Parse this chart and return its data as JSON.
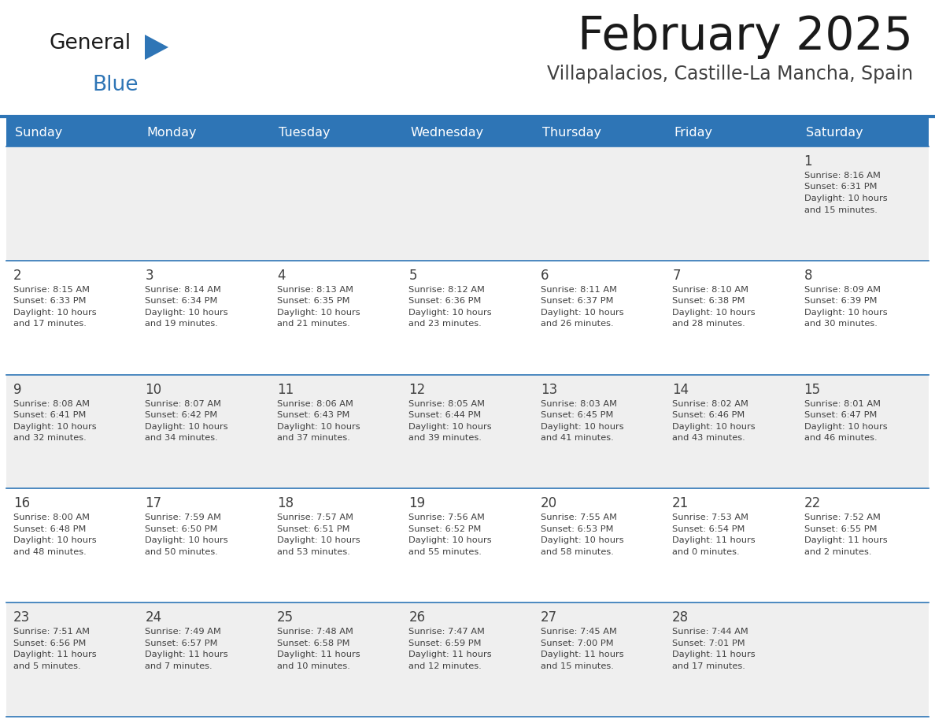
{
  "title": "February 2025",
  "subtitle": "Villapalacios, Castille-La Mancha, Spain",
  "header_bg": "#2E75B6",
  "header_text_color": "#FFFFFF",
  "cell_bg_light": "#EFEFEF",
  "cell_bg_white": "#FFFFFF",
  "day_headers": [
    "Sunday",
    "Monday",
    "Tuesday",
    "Wednesday",
    "Thursday",
    "Friday",
    "Saturday"
  ],
  "calendar_data": [
    [
      null,
      null,
      null,
      null,
      null,
      null,
      {
        "day": 1,
        "sunrise": "8:16 AM",
        "sunset": "6:31 PM",
        "daylight1": "Daylight: 10 hours",
        "daylight2": "and 15 minutes."
      }
    ],
    [
      {
        "day": 2,
        "sunrise": "8:15 AM",
        "sunset": "6:33 PM",
        "daylight1": "Daylight: 10 hours",
        "daylight2": "and 17 minutes."
      },
      {
        "day": 3,
        "sunrise": "8:14 AM",
        "sunset": "6:34 PM",
        "daylight1": "Daylight: 10 hours",
        "daylight2": "and 19 minutes."
      },
      {
        "day": 4,
        "sunrise": "8:13 AM",
        "sunset": "6:35 PM",
        "daylight1": "Daylight: 10 hours",
        "daylight2": "and 21 minutes."
      },
      {
        "day": 5,
        "sunrise": "8:12 AM",
        "sunset": "6:36 PM",
        "daylight1": "Daylight: 10 hours",
        "daylight2": "and 23 minutes."
      },
      {
        "day": 6,
        "sunrise": "8:11 AM",
        "sunset": "6:37 PM",
        "daylight1": "Daylight: 10 hours",
        "daylight2": "and 26 minutes."
      },
      {
        "day": 7,
        "sunrise": "8:10 AM",
        "sunset": "6:38 PM",
        "daylight1": "Daylight: 10 hours",
        "daylight2": "and 28 minutes."
      },
      {
        "day": 8,
        "sunrise": "8:09 AM",
        "sunset": "6:39 PM",
        "daylight1": "Daylight: 10 hours",
        "daylight2": "and 30 minutes."
      }
    ],
    [
      {
        "day": 9,
        "sunrise": "8:08 AM",
        "sunset": "6:41 PM",
        "daylight1": "Daylight: 10 hours",
        "daylight2": "and 32 minutes."
      },
      {
        "day": 10,
        "sunrise": "8:07 AM",
        "sunset": "6:42 PM",
        "daylight1": "Daylight: 10 hours",
        "daylight2": "and 34 minutes."
      },
      {
        "day": 11,
        "sunrise": "8:06 AM",
        "sunset": "6:43 PM",
        "daylight1": "Daylight: 10 hours",
        "daylight2": "and 37 minutes."
      },
      {
        "day": 12,
        "sunrise": "8:05 AM",
        "sunset": "6:44 PM",
        "daylight1": "Daylight: 10 hours",
        "daylight2": "and 39 minutes."
      },
      {
        "day": 13,
        "sunrise": "8:03 AM",
        "sunset": "6:45 PM",
        "daylight1": "Daylight: 10 hours",
        "daylight2": "and 41 minutes."
      },
      {
        "day": 14,
        "sunrise": "8:02 AM",
        "sunset": "6:46 PM",
        "daylight1": "Daylight: 10 hours",
        "daylight2": "and 43 minutes."
      },
      {
        "day": 15,
        "sunrise": "8:01 AM",
        "sunset": "6:47 PM",
        "daylight1": "Daylight: 10 hours",
        "daylight2": "and 46 minutes."
      }
    ],
    [
      {
        "day": 16,
        "sunrise": "8:00 AM",
        "sunset": "6:48 PM",
        "daylight1": "Daylight: 10 hours",
        "daylight2": "and 48 minutes."
      },
      {
        "day": 17,
        "sunrise": "7:59 AM",
        "sunset": "6:50 PM",
        "daylight1": "Daylight: 10 hours",
        "daylight2": "and 50 minutes."
      },
      {
        "day": 18,
        "sunrise": "7:57 AM",
        "sunset": "6:51 PM",
        "daylight1": "Daylight: 10 hours",
        "daylight2": "and 53 minutes."
      },
      {
        "day": 19,
        "sunrise": "7:56 AM",
        "sunset": "6:52 PM",
        "daylight1": "Daylight: 10 hours",
        "daylight2": "and 55 minutes."
      },
      {
        "day": 20,
        "sunrise": "7:55 AM",
        "sunset": "6:53 PM",
        "daylight1": "Daylight: 10 hours",
        "daylight2": "and 58 minutes."
      },
      {
        "day": 21,
        "sunrise": "7:53 AM",
        "sunset": "6:54 PM",
        "daylight1": "Daylight: 11 hours",
        "daylight2": "and 0 minutes."
      },
      {
        "day": 22,
        "sunrise": "7:52 AM",
        "sunset": "6:55 PM",
        "daylight1": "Daylight: 11 hours",
        "daylight2": "and 2 minutes."
      }
    ],
    [
      {
        "day": 23,
        "sunrise": "7:51 AM",
        "sunset": "6:56 PM",
        "daylight1": "Daylight: 11 hours",
        "daylight2": "and 5 minutes."
      },
      {
        "day": 24,
        "sunrise": "7:49 AM",
        "sunset": "6:57 PM",
        "daylight1": "Daylight: 11 hours",
        "daylight2": "and 7 minutes."
      },
      {
        "day": 25,
        "sunrise": "7:48 AM",
        "sunset": "6:58 PM",
        "daylight1": "Daylight: 11 hours",
        "daylight2": "and 10 minutes."
      },
      {
        "day": 26,
        "sunrise": "7:47 AM",
        "sunset": "6:59 PM",
        "daylight1": "Daylight: 11 hours",
        "daylight2": "and 12 minutes."
      },
      {
        "day": 27,
        "sunrise": "7:45 AM",
        "sunset": "7:00 PM",
        "daylight1": "Daylight: 11 hours",
        "daylight2": "and 15 minutes."
      },
      {
        "day": 28,
        "sunrise": "7:44 AM",
        "sunset": "7:01 PM",
        "daylight1": "Daylight: 11 hours",
        "daylight2": "and 17 minutes."
      },
      null
    ]
  ],
  "line_color": "#2E75B6",
  "text_color_dark": "#404040",
  "cell_number_color": "#404040",
  "title_color": "#1a1a1a",
  "subtitle_color": "#404040"
}
